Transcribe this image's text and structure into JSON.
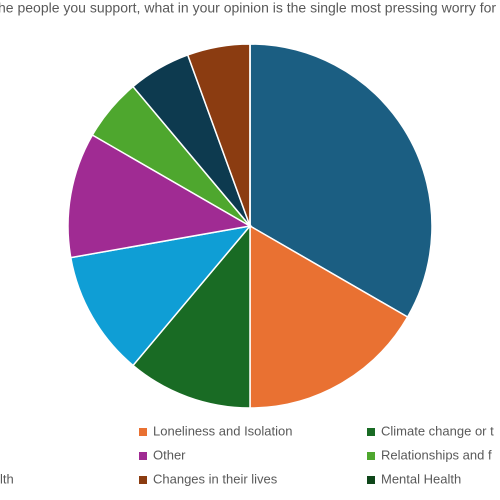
{
  "chart_data": {
    "type": "pie",
    "title": "he people you support, what in your opinion is the single most pressing worry for th",
    "categories": [
      null,
      "Loneliness and Isolation",
      "Climate change or t",
      null,
      "Other",
      "Relationships and f",
      "lth",
      "Changes in their lives",
      "Mental Health"
    ],
    "values": [
      6,
      3,
      2,
      2,
      2,
      1,
      1,
      1,
      0
    ],
    "colors": [
      "#1b5e82",
      "#e97132",
      "#196b24",
      "#0f9ed5",
      "#a02b93",
      "#4ea72e",
      "#0d3a4f",
      "#8b3c11",
      "#0e4619"
    ]
  }
}
